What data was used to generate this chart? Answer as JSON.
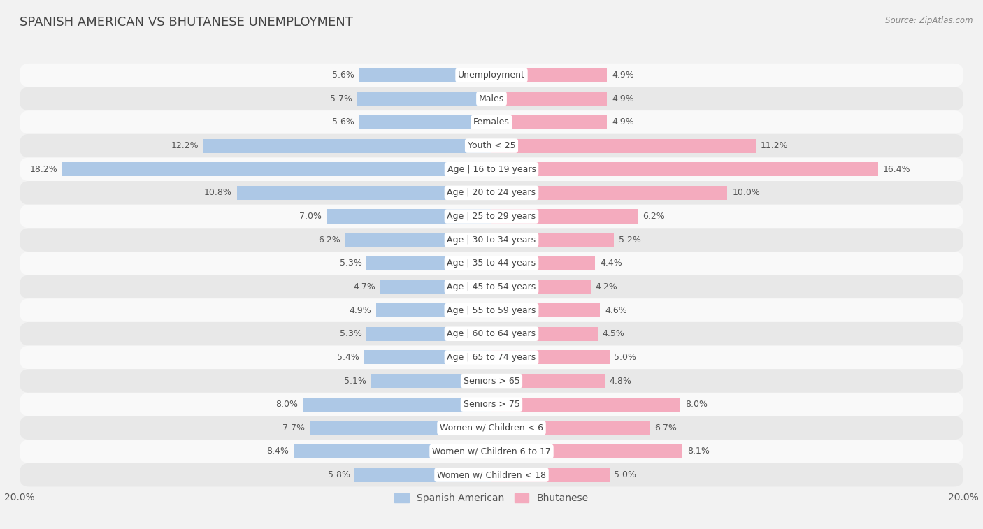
{
  "title": "SPANISH AMERICAN VS BHUTANESE UNEMPLOYMENT",
  "source": "Source: ZipAtlas.com",
  "categories": [
    "Unemployment",
    "Males",
    "Females",
    "Youth < 25",
    "Age | 16 to 19 years",
    "Age | 20 to 24 years",
    "Age | 25 to 29 years",
    "Age | 30 to 34 years",
    "Age | 35 to 44 years",
    "Age | 45 to 54 years",
    "Age | 55 to 59 years",
    "Age | 60 to 64 years",
    "Age | 65 to 74 years",
    "Seniors > 65",
    "Seniors > 75",
    "Women w/ Children < 6",
    "Women w/ Children 6 to 17",
    "Women w/ Children < 18"
  ],
  "spanish_american": [
    5.6,
    5.7,
    5.6,
    12.2,
    18.2,
    10.8,
    7.0,
    6.2,
    5.3,
    4.7,
    4.9,
    5.3,
    5.4,
    5.1,
    8.0,
    7.7,
    8.4,
    5.8
  ],
  "bhutanese": [
    4.9,
    4.9,
    4.9,
    11.2,
    16.4,
    10.0,
    6.2,
    5.2,
    4.4,
    4.2,
    4.6,
    4.5,
    5.0,
    4.8,
    8.0,
    6.7,
    8.1,
    5.0
  ],
  "spanish_american_color": "#adc8e6",
  "bhutanese_color": "#f4abbe",
  "background_color": "#f2f2f2",
  "row_colors": [
    "#f9f9f9",
    "#e8e8e8"
  ],
  "xlim": 20.0,
  "legend_labels": [
    "Spanish American",
    "Bhutanese"
  ],
  "bar_height": 0.6,
  "label_fontsize": 9,
  "title_fontsize": 13
}
